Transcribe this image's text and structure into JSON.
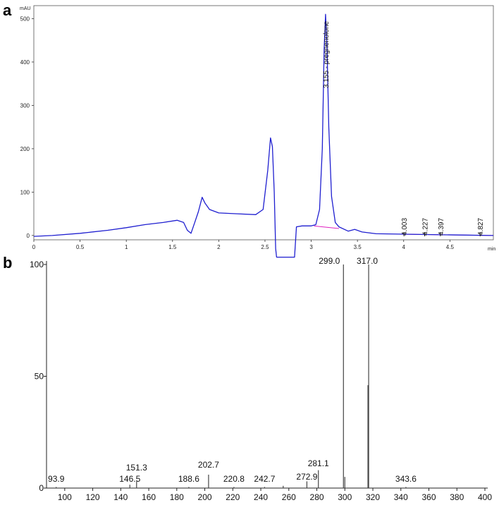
{
  "panels": {
    "a": "a",
    "b": "b"
  },
  "chart_data": [
    {
      "type": "line",
      "panel": "a",
      "ylabel": "mAU",
      "xlabel": "min",
      "xlim": [
        0,
        4.97
      ],
      "ylim": [
        -10,
        530
      ],
      "xticks": [
        "0",
        "0.5",
        "1",
        "1.5",
        "2",
        "2.5",
        "3",
        "3.5",
        "4",
        "4.5"
      ],
      "xtick_values": [
        0,
        0.5,
        1,
        1.5,
        2,
        2.5,
        3,
        3.5,
        4,
        4.5
      ],
      "yticks": [
        "0",
        "100",
        "200",
        "300",
        "400",
        "500"
      ],
      "ytick_values": [
        0,
        100,
        200,
        300,
        400,
        500
      ],
      "line_color": "#1f1fd0",
      "baseline_color": "#e020c0",
      "series": [
        {
          "x": [
            0,
            0.2,
            0.5,
            0.8,
            1.0,
            1.2,
            1.4,
            1.55,
            1.62,
            1.66,
            1.7,
            1.74,
            1.78,
            1.82,
            1.85,
            1.9,
            2.0,
            2.2,
            2.4,
            2.48,
            2.53,
            2.56,
            2.58,
            2.6,
            2.615,
            2.625,
            2.82,
            2.84,
            2.9,
            3.0,
            3.05,
            3.09,
            3.12,
            3.14,
            3.155,
            3.17,
            3.19,
            3.22,
            3.26,
            3.3,
            3.4,
            3.47,
            3.55,
            3.7,
            4.0,
            4.3,
            4.6,
            4.97
          ],
          "y": [
            -2,
            0,
            5,
            12,
            18,
            25,
            30,
            35,
            30,
            12,
            5,
            30,
            55,
            88,
            75,
            60,
            52,
            50,
            48,
            60,
            150,
            225,
            205,
            100,
            -30,
            -50,
            -50,
            20,
            22,
            22,
            25,
            60,
            200,
            430,
            510,
            440,
            250,
            90,
            30,
            20,
            10,
            14,
            8,
            4,
            3,
            2,
            1,
            0
          ]
        }
      ],
      "peak_labels": [
        {
          "x": 3.155,
          "text": "3.155 - pregnenolone"
        },
        {
          "x": 4.003,
          "text": "4.003"
        },
        {
          "x": 4.227,
          "text": "4.227"
        },
        {
          "x": 4.397,
          "text": "4.397"
        },
        {
          "x": 4.827,
          "text": "4.827"
        }
      ]
    },
    {
      "type": "bar",
      "panel": "b",
      "xlabel": "",
      "ylabel": "",
      "xlim": [
        87,
        400
      ],
      "ylim": [
        0,
        100
      ],
      "xticks": [
        "100",
        "120",
        "140",
        "160",
        "180",
        "200",
        "220",
        "240",
        "260",
        "280",
        "300",
        "320",
        "340",
        "360",
        "380",
        "400"
      ],
      "xtick_values": [
        100,
        120,
        140,
        160,
        180,
        200,
        220,
        240,
        260,
        280,
        300,
        320,
        340,
        360,
        380,
        400
      ],
      "yticks": [
        "0",
        "50",
        "100"
      ],
      "ytick_values": [
        0,
        50,
        100
      ],
      "peaks": [
        {
          "mz": 93.9,
          "intensity": 0.5,
          "label": "93.9"
        },
        {
          "mz": 146.5,
          "intensity": 1.5,
          "label": "146.5"
        },
        {
          "mz": 151.3,
          "intensity": 3,
          "label": "151.3"
        },
        {
          "mz": 188.6,
          "intensity": 0.5,
          "label": "188.6"
        },
        {
          "mz": 202.7,
          "intensity": 6,
          "label": "202.7"
        },
        {
          "mz": 220.8,
          "intensity": 0.5,
          "label": "220.8"
        },
        {
          "mz": 242.7,
          "intensity": 0.5,
          "label": "242.7"
        },
        {
          "mz": 256.0,
          "intensity": 1,
          "label": ""
        },
        {
          "mz": 272.9,
          "intensity": 3,
          "label": "272.9"
        },
        {
          "mz": 281.1,
          "intensity": 8,
          "label": "281.1"
        },
        {
          "mz": 299.0,
          "intensity": 100,
          "label": "299.0"
        },
        {
          "mz": 300.0,
          "intensity": 5,
          "label": ""
        },
        {
          "mz": 316.5,
          "intensity": 46,
          "label": ""
        },
        {
          "mz": 317.0,
          "intensity": 100,
          "label": "317.0"
        },
        {
          "mz": 343.6,
          "intensity": 0.5,
          "label": "343.6"
        }
      ]
    }
  ]
}
